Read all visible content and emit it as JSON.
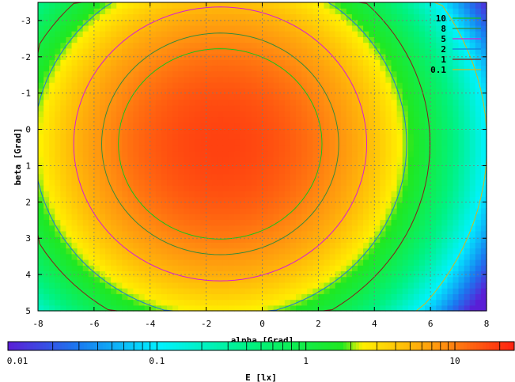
{
  "chart_data": {
    "type": "heatmap",
    "title": "",
    "xlabel": "alpha [Grad]",
    "ylabel": "beta [Grad]",
    "xlim": [
      -8,
      8
    ],
    "ylim": [
      5,
      -3.5
    ],
    "y_inverted": true,
    "x_ticks": [
      "-8",
      "-6",
      "-4",
      "-2",
      "0",
      "2",
      "4",
      "6",
      "8"
    ],
    "y_ticks": [
      "-3",
      "-2",
      "-1",
      "0",
      "1",
      "2",
      "3",
      "4",
      "5"
    ],
    "grid": true,
    "colorbar": {
      "label": "E [lx]",
      "scale": "log",
      "range": [
        0.01,
        25
      ],
      "ticks": [
        "0.01",
        "0.1",
        "1",
        "10"
      ]
    },
    "legend": {
      "placement": "top-right",
      "entries": [
        {
          "label": "10",
          "color": "#19c21c"
        },
        {
          "label": "8",
          "color": "#3a8a3a"
        },
        {
          "label": "5",
          "color": "#d61cd6"
        },
        {
          "label": "2",
          "color": "#1b7ad6"
        },
        {
          "label": "1",
          "color": "#8a1a1a"
        },
        {
          "label": "0.1",
          "color": "#d6b61c"
        }
      ]
    },
    "field": {
      "description_values": "illuminance E [lx] peaks near alpha -1.5, beta 0.4",
      "peak_value": 18,
      "peak_alpha": -1.5,
      "peak_beta": 0.4
    }
  }
}
